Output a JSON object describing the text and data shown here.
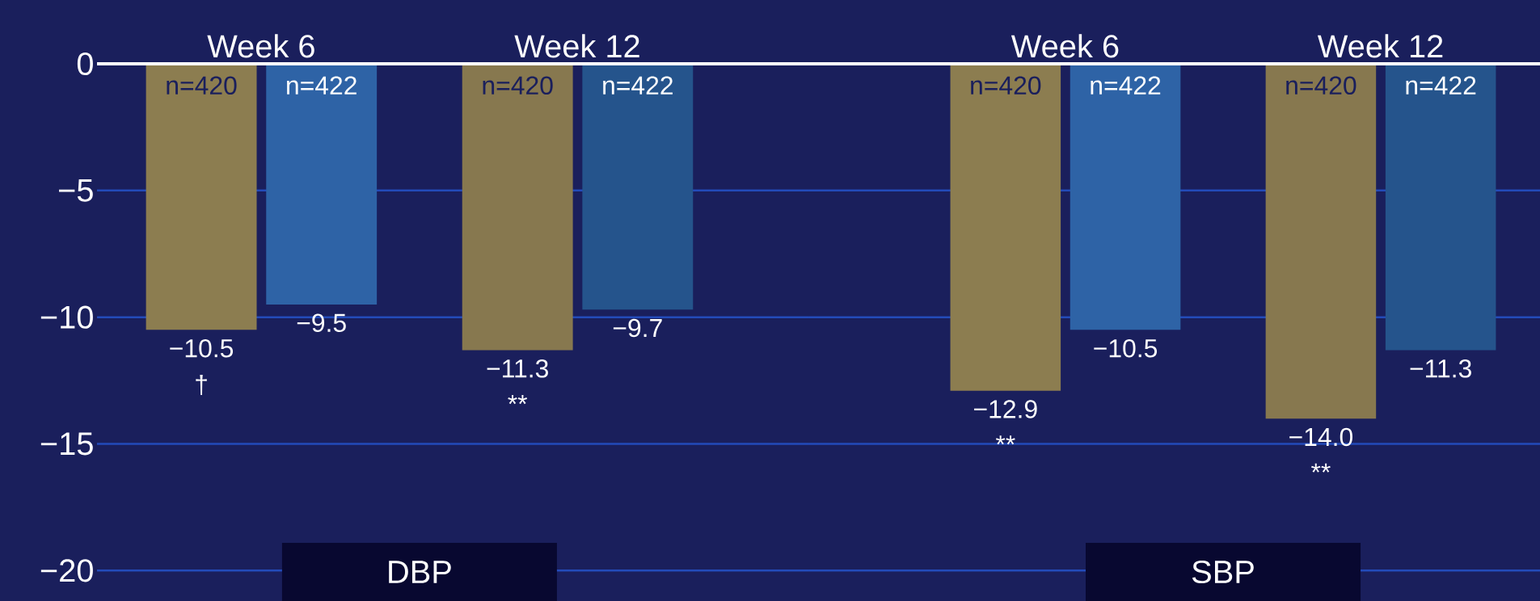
{
  "chart_data": [
    {
      "type": "bar",
      "xlabel": "DBP",
      "categories": [
        "Week 6",
        "Week 12"
      ],
      "series": [
        {
          "colors": [
            "#8c7d50",
            "#87784f"
          ],
          "values": [
            -10.5,
            -11.3
          ],
          "value_labels": [
            "−10.5",
            "−11.3"
          ]
        },
        {
          "colors": [
            "#2e63a6",
            "#25548c"
          ],
          "values": [
            -9.5,
            -9.7
          ],
          "value_labels": [
            "−9.5",
            "−9.7"
          ]
        }
      ],
      "annotations": [
        "n=420",
        "n=422",
        "n=420",
        "n=422",
        "†",
        "**"
      ],
      "ylim": [
        -21.2,
        0
      ],
      "yticks": [
        0,
        {
          "value": -5,
          "label": "−5"
        },
        {
          "value": -10,
          "label": "−10"
        },
        {
          "value": -15,
          "label": "−15"
        },
        {
          "value": -20,
          "label": "−20"
        }
      ],
      "grid": "y"
    },
    {
      "type": "bar",
      "xlabel": "SBP",
      "categories": [
        "Week 6",
        "Week 12"
      ],
      "series": [
        {
          "colors": [
            "#8c7d50",
            "#87784f"
          ],
          "values": [
            -12.9,
            -14.0
          ],
          "value_labels": [
            "−12.9",
            "−14.0"
          ]
        },
        {
          "colors": [
            "#2e63a6",
            "#25548c"
          ],
          "values": [
            -10.5,
            -11.3
          ],
          "value_labels": [
            "−10.5",
            "−11.3"
          ]
        }
      ],
      "annotations": [
        "n=420",
        "n=422",
        "n=420",
        "n=422",
        "**",
        "**"
      ],
      "ylim": [
        -21.2,
        0
      ],
      "yticks": [
        0,
        -5,
        -10,
        -15,
        -20
      ],
      "grid": "y",
      "tick_labels": "x"
    }
  ]
}
